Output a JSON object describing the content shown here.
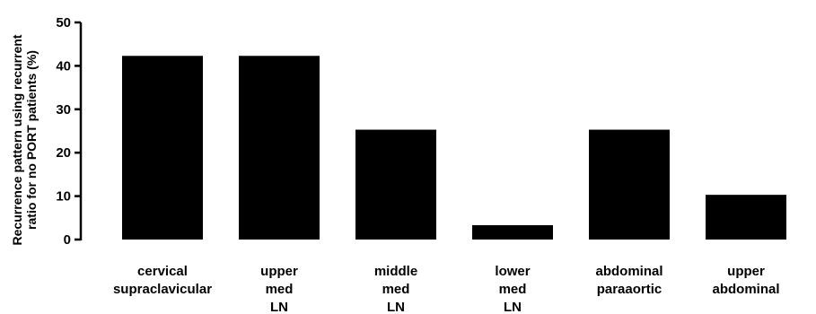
{
  "chart_data": {
    "type": "bar",
    "categories": [
      [
        "cervical",
        "supraclavicular"
      ],
      [
        "upper",
        "med",
        "LN"
      ],
      [
        "middle",
        "med",
        "LN"
      ],
      [
        "lower",
        "med",
        "LN"
      ],
      [
        "abdominal",
        "paraaortic"
      ],
      [
        "upper",
        "abdominal"
      ]
    ],
    "values": [
      42.3,
      42.3,
      25.3,
      3.3,
      25.3,
      10.3
    ],
    "ylabel": [
      "Recurrence pattern using recurrent",
      "ratio for no PORT patients (%)"
    ],
    "ylim": [
      0,
      50
    ],
    "yticks": [
      0,
      10,
      20,
      30,
      40,
      50
    ],
    "grid": false,
    "bar_color": "#000000"
  }
}
